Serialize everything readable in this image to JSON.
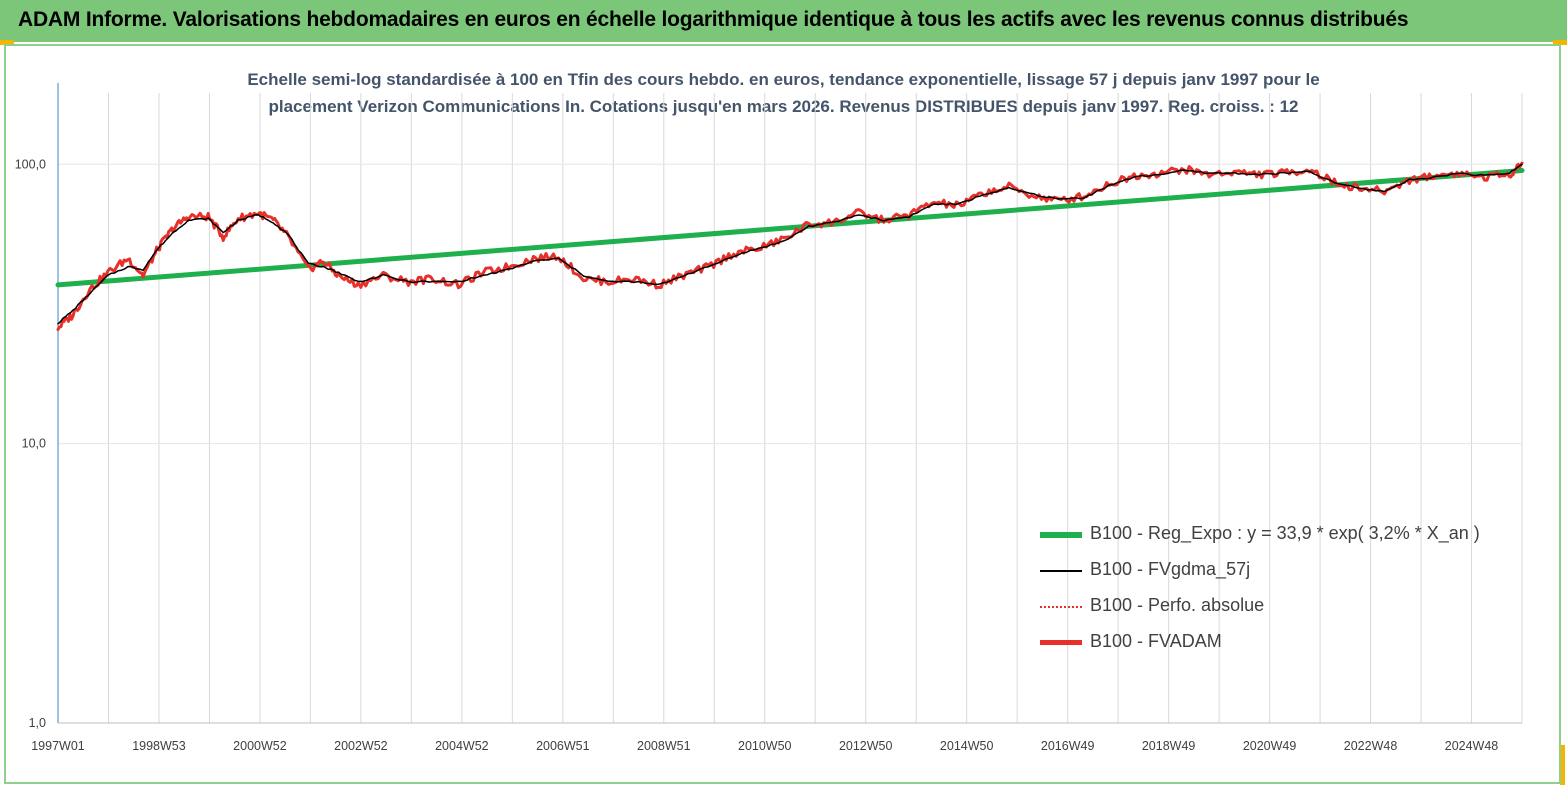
{
  "header": {
    "title": "ADAM Informe. Valorisations hebdomadaires en euros en échelle logarithmique identique à tous les actifs avec les revenus connus distribués",
    "background": "#7cc67a",
    "corner_color": "#f5b400"
  },
  "chart_data": {
    "type": "line",
    "title_lines": [
      "Echelle semi-log standardisée à 100 en Tfin des cours hebdo. en euros, tendance exponentielle, lissage 57 j depuis janv 1997 pour le",
      "placement Verizon Communications In. Cotations jusqu'en mars 2026. Revenus DISTRIBUES depuis janv 1997.  Reg. croiss. : 12"
    ],
    "y_scale": "log",
    "ylim": [
      1,
      180
    ],
    "grid": "vertical",
    "legend_position": "bottom-right",
    "y_ticks": [
      {
        "value": 1,
        "label": "1,0"
      },
      {
        "value": 10,
        "label": "10,0"
      },
      {
        "value": 100,
        "label": "100,0"
      }
    ],
    "x_ticks": [
      "1997W01",
      "1998W53",
      "2000W52",
      "2002W52",
      "2004W52",
      "2006W51",
      "2008W51",
      "2010W50",
      "2012W50",
      "2014W50",
      "2016W49",
      "2018W49",
      "2020W49",
      "2022W48",
      "2024W48"
    ],
    "xlim": [
      1997.0,
      2026.25
    ],
    "series": [
      {
        "name": "B100 - Reg_Expo : y = 33,9 * exp( 3,2% *  X_an )",
        "color": "#1fb04d",
        "style": "thick",
        "x": [
          1997.0,
          2026.25
        ],
        "y": [
          37,
          95
        ]
      },
      {
        "name": "B100 - FVgdma_57j",
        "color": "#000000",
        "style": "thin",
        "x": [
          1997.0,
          1997.3,
          1997.6,
          1998.0,
          1998.4,
          1998.7,
          1999.0,
          1999.3,
          1999.6,
          2000.0,
          2000.3,
          2000.6,
          2001.0,
          2001.3,
          2001.6,
          2002.0,
          2002.3,
          2002.6,
          2003.0,
          2003.5,
          2004.0,
          2004.5,
          2005.0,
          2005.5,
          2006.0,
          2006.5,
          2007.0,
          2007.5,
          2008.0,
          2008.5,
          2009.0,
          2009.5,
          2010.0,
          2010.5,
          2011.0,
          2011.5,
          2012.0,
          2012.5,
          2013.0,
          2013.5,
          2014.0,
          2014.5,
          2015.0,
          2015.5,
          2016.0,
          2016.5,
          2017.0,
          2017.5,
          2018.0,
          2018.5,
          2019.0,
          2019.5,
          2020.0,
          2020.5,
          2021.0,
          2021.5,
          2022.0,
          2022.5,
          2023.0,
          2023.5,
          2024.0,
          2024.5,
          2025.0,
          2025.5,
          2026.0,
          2026.25
        ],
        "y": [
          27,
          30,
          34,
          40,
          43,
          42,
          50,
          57,
          63,
          64,
          57,
          63,
          66,
          62,
          56,
          44,
          43,
          41,
          38,
          40,
          38,
          38,
          38,
          40,
          42,
          45,
          46,
          40,
          38,
          38,
          37,
          40,
          43,
          47,
          50,
          53,
          60,
          62,
          66,
          63,
          65,
          72,
          72,
          78,
          82,
          78,
          75,
          76,
          84,
          90,
          92,
          95,
          93,
          93,
          92,
          93,
          94,
          86,
          82,
          80,
          88,
          90,
          93,
          91,
          93,
          100
        ]
      },
      {
        "name": "B100 - Perfo. absolue",
        "color": "#e8302a",
        "style": "dotted",
        "x": [
          1997.0,
          1997.3,
          1997.6,
          1998.0,
          1998.4,
          1998.7,
          1999.0,
          1999.3,
          1999.6,
          2000.0,
          2000.3,
          2000.6,
          2001.0,
          2001.3,
          2001.6,
          2002.0,
          2002.3,
          2002.6,
          2003.0,
          2003.5,
          2004.0,
          2004.5,
          2005.0,
          2005.5,
          2006.0,
          2006.5,
          2007.0,
          2007.5,
          2008.0,
          2008.5,
          2009.0,
          2009.5,
          2010.0,
          2010.5,
          2011.0,
          2011.5,
          2012.0,
          2012.5,
          2013.0,
          2013.5,
          2014.0,
          2014.5,
          2015.0,
          2015.5,
          2016.0,
          2016.5,
          2017.0,
          2017.5,
          2018.0,
          2018.5,
          2019.0,
          2019.5,
          2020.0,
          2020.5,
          2021.0,
          2021.5,
          2022.0,
          2022.5,
          2023.0,
          2023.5,
          2024.0,
          2024.5,
          2025.0,
          2025.5,
          2026.0,
          2026.25
        ],
        "y": [
          26,
          29,
          35,
          41,
          46,
          40,
          50,
          59,
          65,
          65,
          55,
          64,
          67,
          63,
          55,
          42,
          45,
          40,
          37,
          40,
          38,
          39,
          37,
          41,
          43,
          46,
          47,
          39,
          38,
          39,
          37,
          40,
          43,
          48,
          50,
          54,
          61,
          62,
          67,
          63,
          66,
          73,
          71,
          79,
          83,
          77,
          74,
          77,
          85,
          91,
          93,
          96,
          92,
          94,
          92,
          93,
          96,
          86,
          82,
          80,
          88,
          91,
          93,
          90,
          92,
          101
        ]
      },
      {
        "name": "B100 - FVADAM",
        "color": "#e8302a",
        "style": "thick",
        "x": [
          1997.0,
          1997.3,
          1997.6,
          1998.0,
          1998.4,
          1998.7,
          1999.0,
          1999.3,
          1999.6,
          2000.0,
          2000.3,
          2000.6,
          2001.0,
          2001.3,
          2001.6,
          2002.0,
          2002.3,
          2002.6,
          2003.0,
          2003.5,
          2004.0,
          2004.5,
          2005.0,
          2005.5,
          2006.0,
          2006.5,
          2007.0,
          2007.5,
          2008.0,
          2008.5,
          2009.0,
          2009.5,
          2010.0,
          2010.5,
          2011.0,
          2011.5,
          2012.0,
          2012.5,
          2013.0,
          2013.5,
          2014.0,
          2014.5,
          2015.0,
          2015.5,
          2016.0,
          2016.5,
          2017.0,
          2017.5,
          2018.0,
          2018.5,
          2019.0,
          2019.5,
          2020.0,
          2020.5,
          2021.0,
          2021.5,
          2022.0,
          2022.5,
          2023.0,
          2023.5,
          2024.0,
          2024.5,
          2025.0,
          2025.5,
          2026.0,
          2026.25
        ],
        "y": [
          26,
          29,
          35,
          41,
          46,
          40,
          50,
          59,
          65,
          65,
          55,
          64,
          67,
          63,
          55,
          42,
          45,
          40,
          37,
          40,
          38,
          39,
          37,
          41,
          43,
          46,
          47,
          39,
          38,
          39,
          37,
          40,
          43,
          48,
          50,
          54,
          61,
          62,
          67,
          63,
          66,
          73,
          71,
          79,
          83,
          77,
          74,
          77,
          85,
          91,
          93,
          96,
          92,
          94,
          92,
          93,
          96,
          86,
          82,
          80,
          88,
          91,
          93,
          90,
          92,
          101
        ]
      }
    ]
  }
}
